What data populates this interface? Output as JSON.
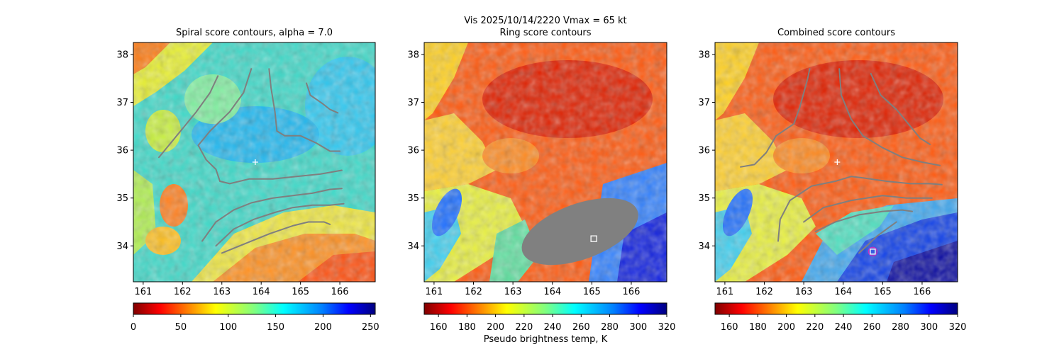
{
  "figure": {
    "suptitle": "Vis  2025/10/14/2220    Vmax = 65 kt",
    "colorbar_label": "Pseudo brightness temp, K"
  },
  "chart_data": [
    {
      "type": "heatmap",
      "title": "Spiral score contours, alpha =  7.0",
      "xlim": [
        160.75,
        166.9
      ],
      "ylim": [
        33.25,
        38.25
      ],
      "xticks": [
        "161",
        "162",
        "163",
        "164",
        "165",
        "166"
      ],
      "yticks": [
        "34",
        "35",
        "36",
        "37",
        "38"
      ],
      "colormap": "jet_r",
      "colorbar": {
        "range": [
          0,
          255
        ],
        "ticks": [
          "0",
          "50",
          "100",
          "150",
          "200",
          "250"
        ]
      },
      "center_marker": {
        "symbol": "+",
        "x": 163.85,
        "y": 35.75
      },
      "contours": [
        {
          "points": [
            [
              161.4,
              35.85
            ],
            [
              161.7,
              36.15
            ],
            [
              162.0,
              36.45
            ],
            [
              162.35,
              36.8
            ],
            [
              162.7,
              37.2
            ],
            [
              162.9,
              37.55
            ]
          ]
        },
        {
          "points": [
            [
              163.75,
              37.7
            ],
            [
              163.55,
              37.2
            ],
            [
              163.2,
              36.8
            ],
            [
              162.7,
              36.4
            ],
            [
              162.4,
              36.1
            ],
            [
              162.6,
              35.8
            ],
            [
              162.85,
              35.6
            ],
            [
              162.95,
              35.35
            ],
            [
              163.2,
              35.3
            ],
            [
              163.7,
              35.4
            ],
            [
              164.3,
              35.4
            ],
            [
              164.9,
              35.45
            ],
            [
              165.5,
              35.5
            ],
            [
              166.05,
              35.58
            ]
          ]
        },
        {
          "points": [
            [
              164.2,
              37.7
            ],
            [
              164.25,
              37.3
            ],
            [
              164.35,
              36.8
            ],
            [
              164.4,
              36.4
            ],
            [
              164.6,
              36.3
            ],
            [
              165.0,
              36.3
            ],
            [
              165.4,
              36.15
            ],
            [
              165.75,
              35.98
            ],
            [
              166.0,
              35.98
            ]
          ]
        },
        {
          "points": [
            [
              165.15,
              37.4
            ],
            [
              165.25,
              37.15
            ],
            [
              165.55,
              36.98
            ],
            [
              165.75,
              36.85
            ],
            [
              165.95,
              36.78
            ]
          ]
        },
        {
          "points": [
            [
              162.5,
              34.1
            ],
            [
              162.85,
              34.5
            ],
            [
              163.3,
              34.75
            ],
            [
              163.75,
              34.9
            ],
            [
              164.3,
              35.0
            ],
            [
              164.8,
              35.05
            ],
            [
              165.3,
              35.1
            ],
            [
              165.75,
              35.18
            ],
            [
              166.05,
              35.2
            ]
          ]
        },
        {
          "points": [
            [
              162.85,
              34.0
            ],
            [
              163.3,
              34.35
            ],
            [
              163.8,
              34.55
            ],
            [
              164.35,
              34.7
            ],
            [
              164.8,
              34.8
            ],
            [
              165.3,
              34.85
            ],
            [
              165.75,
              34.85
            ],
            [
              166.1,
              34.88
            ]
          ]
        },
        {
          "points": [
            [
              163.0,
              33.85
            ],
            [
              163.6,
              34.05
            ],
            [
              164.2,
              34.25
            ],
            [
              164.8,
              34.42
            ],
            [
              165.2,
              34.5
            ],
            [
              165.6,
              34.5
            ],
            [
              165.75,
              34.45
            ]
          ]
        }
      ]
    },
    {
      "type": "heatmap",
      "title": "Ring score contours",
      "xlim": [
        160.75,
        166.9
      ],
      "ylim": [
        33.25,
        38.25
      ],
      "xticks": [
        "161",
        "162",
        "163",
        "164",
        "165",
        "166"
      ],
      "yticks": [
        "34",
        "35",
        "36",
        "37",
        "38"
      ],
      "colormap": "jet_r",
      "colorbar": {
        "range": [
          150,
          320
        ],
        "ticks": [
          "160",
          "180",
          "200",
          "220",
          "240",
          "260",
          "280",
          "300",
          "320"
        ]
      },
      "ring_region": {
        "center_x": 164.7,
        "center_y": 34.3,
        "semi_major": 1.55,
        "semi_minor": 0.58,
        "rotation_deg": 20,
        "color": "#808080"
      },
      "center_marker": {
        "symbol": "square",
        "x": 165.05,
        "y": 34.15
      }
    },
    {
      "type": "heatmap",
      "title": "Combined score contours",
      "xlim": [
        160.75,
        166.9
      ],
      "ylim": [
        33.25,
        38.25
      ],
      "xticks": [
        "161",
        "162",
        "163",
        "164",
        "165",
        "166"
      ],
      "yticks": [
        "34",
        "35",
        "36",
        "37",
        "38"
      ],
      "colormap": "jet_r",
      "colorbar": {
        "range": [
          150,
          320
        ],
        "ticks": [
          "160",
          "180",
          "200",
          "220",
          "240",
          "260",
          "280",
          "300",
          "320"
        ]
      },
      "center_marker": {
        "symbol": "+",
        "x": 163.85,
        "y": 35.75
      },
      "final_marker": {
        "symbol": "circle-square",
        "x": 164.75,
        "y": 33.88
      },
      "contours": [
        {
          "points": [
            [
              161.4,
              35.65
            ],
            [
              161.75,
              35.7
            ],
            [
              162.05,
              35.95
            ],
            [
              162.3,
              36.3
            ],
            [
              162.75,
              36.55
            ],
            [
              162.9,
              36.9
            ],
            [
              163.1,
              37.5
            ],
            [
              163.15,
              37.7
            ]
          ]
        },
        {
          "points": [
            [
              163.9,
              37.7
            ],
            [
              163.95,
              37.15
            ],
            [
              164.2,
              36.65
            ],
            [
              164.5,
              36.3
            ],
            [
              165.0,
              36.05
            ],
            [
              165.5,
              35.85
            ],
            [
              166.0,
              35.75
            ],
            [
              166.45,
              35.68
            ]
          ]
        },
        {
          "points": [
            [
              164.7,
              37.6
            ],
            [
              164.95,
              37.15
            ],
            [
              165.35,
              36.85
            ],
            [
              165.7,
              36.5
            ],
            [
              165.95,
              36.25
            ],
            [
              166.2,
              36.12
            ]
          ]
        },
        {
          "points": [
            [
              162.35,
              34.1
            ],
            [
              162.4,
              34.55
            ],
            [
              162.65,
              34.95
            ],
            [
              163.2,
              35.25
            ],
            [
              163.8,
              35.35
            ],
            [
              164.2,
              35.45
            ],
            [
              164.5,
              35.42
            ],
            [
              165.1,
              35.35
            ],
            [
              165.7,
              35.3
            ],
            [
              166.2,
              35.3
            ],
            [
              166.5,
              35.28
            ]
          ]
        },
        {
          "points": [
            [
              163.0,
              34.5
            ],
            [
              163.5,
              34.8
            ],
            [
              164.2,
              34.95
            ],
            [
              165.0,
              35.05
            ],
            [
              165.6,
              35.0
            ],
            [
              166.25,
              35.0
            ]
          ]
        },
        {
          "points": [
            [
              163.3,
              34.3
            ],
            [
              163.8,
              34.5
            ],
            [
              164.4,
              34.65
            ],
            [
              165.0,
              34.72
            ],
            [
              165.5,
              34.75
            ],
            [
              165.75,
              34.72
            ]
          ]
        },
        {
          "points": [
            [
              164.4,
              33.85
            ],
            [
              164.6,
              34.0
            ],
            [
              164.85,
              34.2
            ],
            [
              165.1,
              34.35
            ],
            [
              165.35,
              34.5
            ]
          ]
        }
      ]
    }
  ]
}
